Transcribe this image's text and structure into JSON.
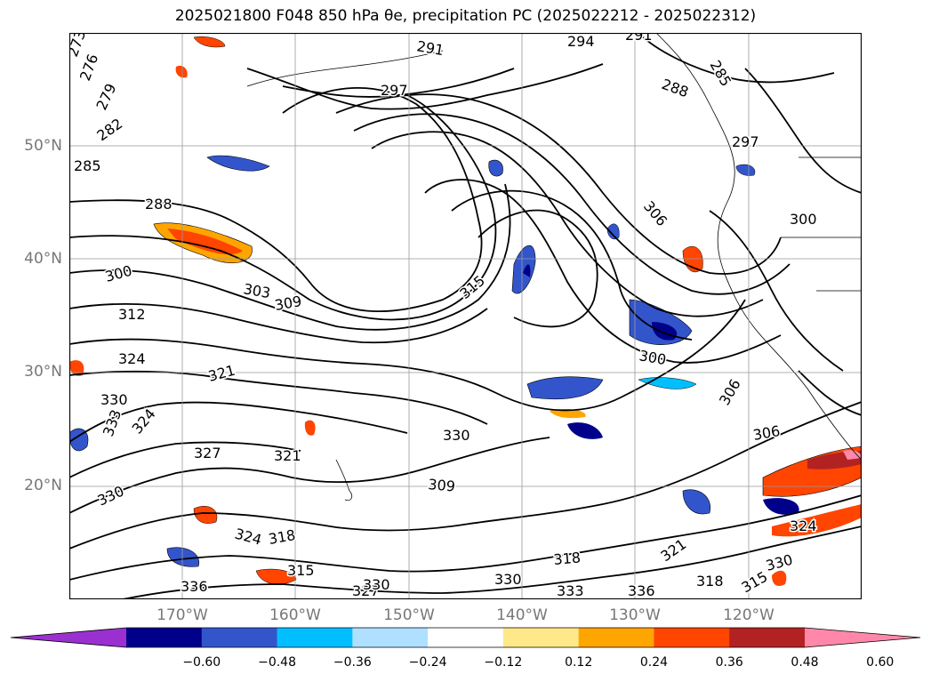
{
  "title": "2025021800 F048 850 hPa θe, precipitation PC (2025022212 - 2025022312)",
  "map": {
    "projection": "PlateCarree",
    "extent": {
      "lon_min": -180,
      "lon_max": -110,
      "lat_min": 10,
      "lat_max": 60
    },
    "background": "#ffffff",
    "gridlines": true,
    "coastlines": true,
    "lat_labels": [
      "50°N",
      "40°N",
      "30°N",
      "20°N"
    ],
    "lon_labels": [
      "170°W",
      "160°W",
      "150°W",
      "140°W",
      "130°W",
      "120°W"
    ],
    "contour_labels": [
      "273",
      "276",
      "279",
      "282",
      "285",
      "288",
      "291",
      "297",
      "300",
      "303",
      "309",
      "312",
      "324",
      "321",
      "330",
      "333",
      "324",
      "327",
      "321",
      "330",
      "315",
      "336",
      "318",
      "324",
      "330",
      "309",
      "315",
      "300",
      "306",
      "294",
      "291",
      "285",
      "288",
      "297",
      "300",
      "306",
      "306",
      "318",
      "321",
      "330",
      "333",
      "336",
      "318",
      "330",
      "324",
      "315",
      "327",
      "330"
    ]
  },
  "colorbar": {
    "ticks": [
      "−0.60",
      "−0.48",
      "−0.36",
      "−0.24",
      "−0.12",
      "0.12",
      "0.24",
      "0.36",
      "0.48",
      "0.60"
    ],
    "colors": [
      "#9b30d0",
      "#00008b",
      "#3355cc",
      "#00bfff",
      "#b0e0ff",
      "#ffffff",
      "#ffe88a",
      "#ffa500",
      "#ff4500",
      "#b22222",
      "#ff88aa"
    ]
  }
}
